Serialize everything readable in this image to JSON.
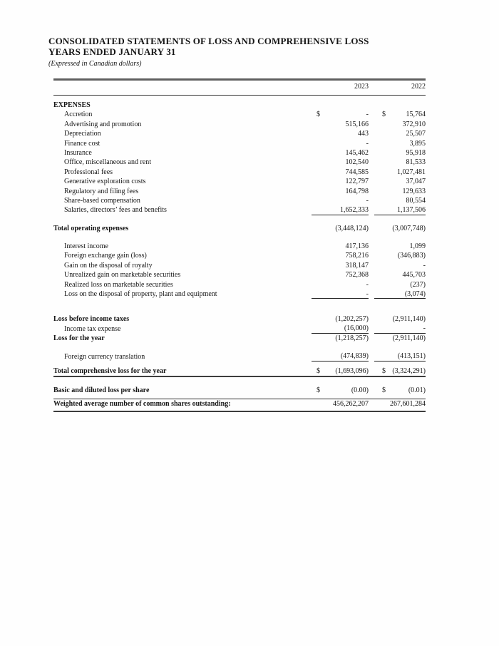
{
  "header": {
    "title_line1": "CONSOLIDATED STATEMENTS OF LOSS AND COMPREHENSIVE LOSS",
    "title_line2": "YEARS ENDED JANUARY 31",
    "subtitle": "(Expressed in Canadian dollars)"
  },
  "table": {
    "col_headers": [
      "2023",
      "2022"
    ],
    "currency_symbol": "$",
    "rows": [
      {
        "style": "section",
        "label": "EXPENSES",
        "v2023": "",
        "v2022": ""
      },
      {
        "style": "item",
        "label": "Accretion",
        "dollar": true,
        "v2023": "-",
        "v2022": "15,764"
      },
      {
        "style": "item",
        "label": "Advertising and promotion",
        "v2023": "515,166",
        "v2022": "372,910"
      },
      {
        "style": "item",
        "label": "Depreciation",
        "v2023": "443",
        "v2022": "25,507"
      },
      {
        "style": "item",
        "label": "Finance cost",
        "v2023": "-",
        "v2022": "3,895"
      },
      {
        "style": "item",
        "label": "Insurance",
        "v2023": "145,462",
        "v2022": "95,918"
      },
      {
        "style": "item",
        "label": "Office, miscellaneous and rent",
        "v2023": "102,540",
        "v2022": "81,533"
      },
      {
        "style": "item",
        "label": "Professional fees",
        "v2023": "744,585",
        "v2022": "1,027,481"
      },
      {
        "style": "item",
        "label": "Generative exploration costs",
        "v2023": "122,797",
        "v2022": "37,047"
      },
      {
        "style": "item",
        "label": "Regulatory and filing fees",
        "v2023": "164,798",
        "v2022": "129,633"
      },
      {
        "style": "item",
        "label": "Share-based compensation",
        "v2023": "-",
        "v2022": "80,554"
      },
      {
        "style": "item",
        "label": "Salaries, directors’ fees and benefits",
        "underline": true,
        "v2023": "1,652,333",
        "v2022": "1,137,506"
      },
      {
        "style": "gap-md"
      },
      {
        "style": "total",
        "label": "Total operating expenses",
        "v2023": "(3,448,124)",
        "v2022": "(3,007,748)"
      },
      {
        "style": "gap-md"
      },
      {
        "style": "item",
        "label": "Interest income",
        "v2023": "417,136",
        "v2022": "1,099"
      },
      {
        "style": "item",
        "label": "Foreign exchange gain (loss)",
        "v2023": "758,216",
        "v2022": "(346,883)"
      },
      {
        "style": "item",
        "label": "Gain on the disposal of royalty",
        "v2023": "318,147",
        "v2022": "-"
      },
      {
        "style": "item",
        "label": "Unrealized gain on marketable securities",
        "v2023": "752,368",
        "v2022": "445,703"
      },
      {
        "style": "item",
        "label": "Realized loss on marketable securities",
        "v2023": "-",
        "v2022": "(237)"
      },
      {
        "style": "item",
        "label": "Loss on the disposal of property, plant and equipment",
        "underline": true,
        "v2023": "-",
        "v2022": "(3,074)"
      },
      {
        "style": "gap-xl"
      },
      {
        "style": "total",
        "label": "Loss before income taxes",
        "v2023": "(1,202,257)",
        "v2022": "(2,911,140)"
      },
      {
        "style": "item",
        "label": "Income tax expense",
        "underline": true,
        "v2023": "(16,000)",
        "v2022": "-"
      },
      {
        "style": "total",
        "label": "Loss for the year",
        "v2023": "(1,218,257)",
        "v2022": "(2,911,140)"
      },
      {
        "style": "gap-md"
      },
      {
        "style": "item",
        "label": "Foreign currency translation",
        "underline": true,
        "v2023": "(474,839)",
        "v2022": "(413,151)"
      },
      {
        "style": "gap-sm"
      },
      {
        "style": "total",
        "label": "Total comprehensive loss for the year",
        "dollar": true,
        "v2023": "(1,693,096)",
        "v2022": "(3,324,291)"
      },
      {
        "style": "rule-thick"
      },
      {
        "style": "gap-md"
      },
      {
        "style": "total",
        "label": "Basic and diluted loss per share",
        "dollar": true,
        "v2023": "(0.00)",
        "v2022": "(0.01)"
      },
      {
        "style": "gap-xs"
      },
      {
        "style": "rule-thin"
      },
      {
        "style": "total",
        "label": "Weighted average number of common shares outstanding:",
        "v2023": "456,262,207",
        "v2022": "267,601,284"
      },
      {
        "style": "gap-xxs"
      },
      {
        "style": "rule-thick"
      }
    ]
  }
}
